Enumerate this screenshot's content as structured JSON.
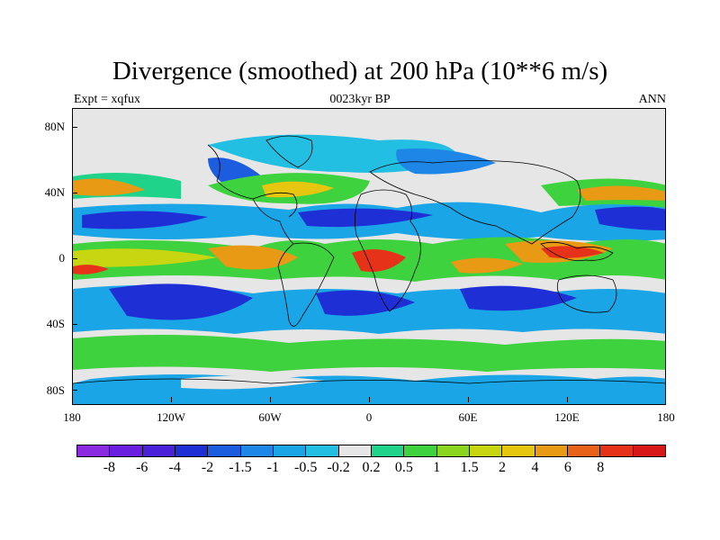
{
  "title": "Divergence (smoothed) at 200 hPa (10**6 m/s)",
  "subtitle_left": "Expt = xqfux",
  "subtitle_center": "0023kyr BP",
  "subtitle_right": "ANN",
  "lat_labels": [
    "80N",
    "40N",
    "0",
    "40S",
    "80S"
  ],
  "lon_labels": [
    "180",
    "120W",
    "60W",
    "0",
    "60E",
    "120E",
    "180"
  ],
  "legend": {
    "colors": [
      "#8a2be2",
      "#6a1ee0",
      "#4a20d8",
      "#1f2fd6",
      "#1c5cdf",
      "#1e86e6",
      "#1aa6e6",
      "#22bfe2",
      "#e6e6e6",
      "#1fd38a",
      "#3fd23f",
      "#8ad51f",
      "#c8d612",
      "#e6c60f",
      "#e89a14",
      "#e8621a",
      "#e63218",
      "#d81818"
    ],
    "labels": [
      "-8",
      "-6",
      "-4",
      "-2",
      "-1.5",
      "-1",
      "-0.5",
      "-0.2",
      "0.2",
      "0.5",
      "1",
      "1.5",
      "2",
      "4",
      "6",
      "8"
    ]
  }
}
